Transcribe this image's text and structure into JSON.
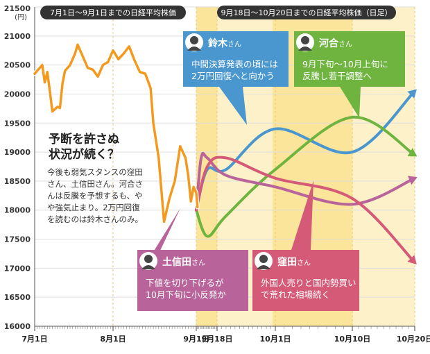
{
  "chart_data": {
    "type": "line",
    "y_unit": "(円)",
    "ylim": [
      16000,
      21500
    ],
    "y_ticks": [
      16000,
      16500,
      17000,
      17500,
      18000,
      18500,
      19000,
      19500,
      20000,
      20500,
      21000,
      21500
    ],
    "x_ticks": [
      {
        "label": "7月1日",
        "date": "2016-07-01"
      },
      {
        "label": "8月1日",
        "date": "2016-08-01"
      },
      {
        "label": "9月1日",
        "date": "2016-09-01"
      },
      {
        "label": "9月18日",
        "date": "2016-09-18"
      },
      {
        "label": "10月1日",
        "date": "2016-10-01"
      },
      {
        "label": "10月10日",
        "date": "2016-10-10"
      },
      {
        "label": "10月20日",
        "date": "2016-10-20"
      }
    ],
    "header_left": "7月1日～9月1日までの日経平均株価",
    "header_right": "9月18日～10月20日までの日経平均株価（日足）",
    "actual_series": {
      "color": "#f39a1e",
      "x": [
        "2016-07-01",
        "2016-07-04",
        "2016-07-05",
        "2016-07-06",
        "2016-07-07",
        "2016-07-08",
        "2016-07-10",
        "2016-07-11",
        "2016-07-12",
        "2016-07-13",
        "2016-07-15",
        "2016-07-17",
        "2016-07-18",
        "2016-07-20",
        "2016-07-22",
        "2016-07-24",
        "2016-07-26",
        "2016-07-28",
        "2016-07-30",
        "2016-08-01",
        "2016-08-03",
        "2016-08-05",
        "2016-08-07",
        "2016-08-09",
        "2016-08-11",
        "2016-08-13",
        "2016-08-15",
        "2016-08-16",
        "2016-08-18",
        "2016-08-20",
        "2016-08-22",
        "2016-08-24",
        "2016-08-26",
        "2016-08-28",
        "2016-08-29",
        "2016-08-30",
        "2016-08-31",
        "2016-09-01",
        "2016-09-02"
      ],
      "y": [
        20350,
        20500,
        20200,
        20380,
        20050,
        19700,
        19780,
        19760,
        20180,
        20400,
        20500,
        20700,
        20850,
        20650,
        20450,
        20420,
        20300,
        20500,
        20550,
        20750,
        20600,
        20700,
        20820,
        20580,
        20380,
        20350,
        20100,
        19500,
        18900,
        17800,
        18200,
        18500,
        19100,
        18900,
        18600,
        18150,
        18400,
        18300,
        18050
      ]
    },
    "series": [
      {
        "name": "鈴木さん",
        "color": "#4a97d0",
        "x": [
          "2016-09-01",
          "2016-09-10",
          "2016-09-20",
          "2016-10-01",
          "2016-10-10",
          "2016-10-20"
        ],
        "y": [
          18000,
          18700,
          18700,
          19400,
          19000,
          20050
        ]
      },
      {
        "name": "河合さん",
        "color": "#6eb43f",
        "x": [
          "2016-09-01",
          "2016-09-10",
          "2016-09-20",
          "2016-10-01",
          "2016-10-10",
          "2016-10-20"
        ],
        "y": [
          18000,
          17550,
          17900,
          18700,
          19600,
          18950
        ]
      },
      {
        "name": "土信田さん",
        "color": "#b8649a",
        "x": [
          "2016-09-01",
          "2016-09-05",
          "2016-09-10",
          "2016-09-20",
          "2016-10-01",
          "2016-10-10",
          "2016-10-20"
        ],
        "y": [
          18000,
          18900,
          18900,
          18600,
          18400,
          18100,
          18550
        ]
      },
      {
        "name": "窪田さん",
        "color": "#d45a78",
        "x": [
          "2016-09-01",
          "2016-09-10",
          "2016-09-20",
          "2016-10-01",
          "2016-10-10",
          "2016-10-20"
        ],
        "y": [
          18000,
          18750,
          18900,
          18550,
          18200,
          17100
        ]
      }
    ],
    "callouts": [
      {
        "name": "鈴木",
        "suffix": "さん",
        "text": "中間決算発表の頃には\n2万円回復へと向かう",
        "color": "#4a97d0"
      },
      {
        "name": "河合",
        "suffix": "さん",
        "text": "9月下旬～10月上旬に\n反騰し若干調整へ",
        "color": "#6eb43f"
      },
      {
        "name": "土信田",
        "suffix": "さん",
        "text": "下値を切り下げるが\n10月下旬に小反発か",
        "color": "#b8649a"
      },
      {
        "name": "窪田",
        "suffix": "さん",
        "text": "外国人売りと国内勢買い\nで荒れた相場続く",
        "color": "#d45a78"
      }
    ],
    "annotation": {
      "title": "予断を許さぬ\n状況が続く？",
      "body": "今後も弱気スタンスの窪田\nさん、土信田さん。河合さ\nんは反騰を予想するも、や\nや強気止まり。2万円回復\nを読むのは鈴木さんのみ。"
    }
  }
}
